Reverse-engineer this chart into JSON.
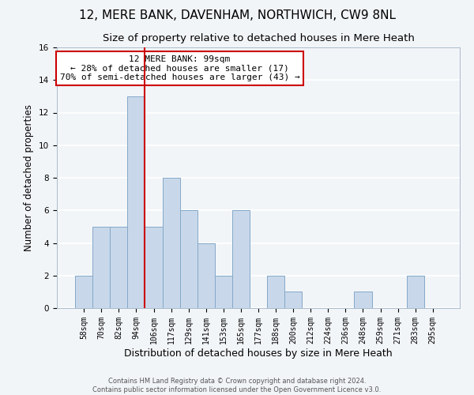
{
  "title": "12, MERE BANK, DAVENHAM, NORTHWICH, CW9 8NL",
  "subtitle": "Size of property relative to detached houses in Mere Heath",
  "xlabel": "Distribution of detached houses by size in Mere Heath",
  "ylabel": "Number of detached properties",
  "bar_labels": [
    "58sqm",
    "70sqm",
    "82sqm",
    "94sqm",
    "106sqm",
    "117sqm",
    "129sqm",
    "141sqm",
    "153sqm",
    "165sqm",
    "177sqm",
    "188sqm",
    "200sqm",
    "212sqm",
    "224sqm",
    "236sqm",
    "248sqm",
    "259sqm",
    "271sqm",
    "283sqm",
    "295sqm"
  ],
  "bar_values": [
    2,
    5,
    5,
    13,
    5,
    8,
    6,
    4,
    2,
    6,
    0,
    2,
    1,
    0,
    0,
    0,
    1,
    0,
    0,
    2,
    0
  ],
  "bar_color": "#c8d8ea",
  "bar_edge_color": "#85a8c8",
  "vline_x": 3.5,
  "vline_color": "#cc0000",
  "ylim": [
    0,
    16
  ],
  "yticks": [
    0,
    2,
    4,
    6,
    8,
    10,
    12,
    14,
    16
  ],
  "annotation_title": "12 MERE BANK: 99sqm",
  "annotation_line1": "← 28% of detached houses are smaller (17)",
  "annotation_line2": "70% of semi-detached houses are larger (43) →",
  "annotation_box_facecolor": "#ffffff",
  "annotation_box_edgecolor": "#cc0000",
  "footer_line1": "Contains HM Land Registry data © Crown copyright and database right 2024.",
  "footer_line2": "Contains public sector information licensed under the Open Government Licence v3.0.",
  "background_color": "#f2f5f8",
  "grid_color": "#ffffff",
  "title_fontsize": 11,
  "subtitle_fontsize": 9.5,
  "ylabel_fontsize": 8.5,
  "xlabel_fontsize": 9,
  "tick_fontsize": 7,
  "footer_fontsize": 6,
  "annot_fontsize": 8
}
